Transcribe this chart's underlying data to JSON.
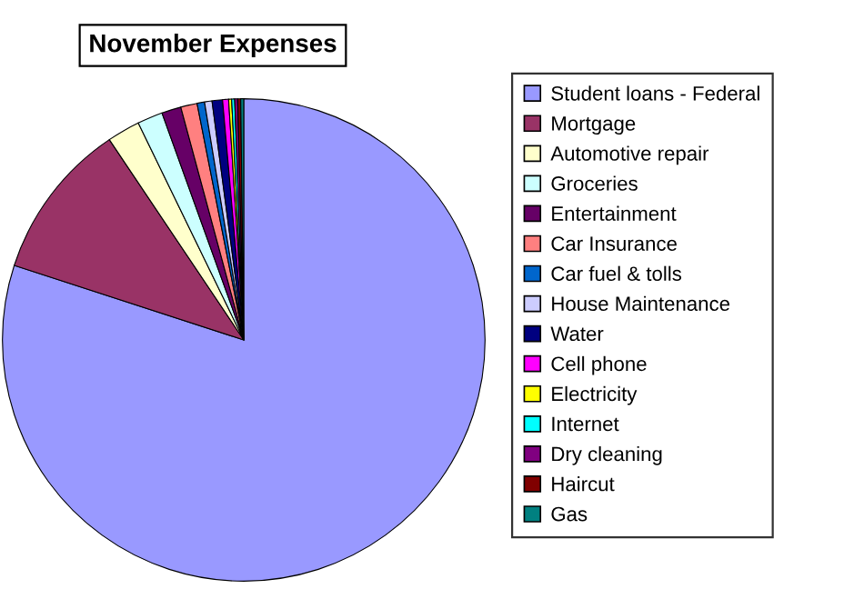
{
  "chart_data": {
    "type": "pie",
    "title": "November Expenses",
    "categories": [
      "Student loans - Federal",
      "Mortgage",
      "Automotive repair",
      "Groceries",
      "Entertainment",
      "Car Insurance",
      "Car fuel & tolls",
      "House Maintenance",
      "Water",
      "Cell phone",
      "Electricity",
      "Internet",
      "Dry cleaning",
      "Haircut",
      "Gas"
    ],
    "values": [
      80.0,
      10.6,
      2.2,
      1.7,
      1.3,
      1.1,
      0.5,
      0.5,
      0.7,
      0.4,
      0.2,
      0.2,
      0.2,
      0.2,
      0.2
    ],
    "colors": [
      "#9999ff",
      "#993366",
      "#ffffcc",
      "#ccffff",
      "#660066",
      "#ff8080",
      "#0066cc",
      "#ccccff",
      "#000080",
      "#ff00ff",
      "#ffff00",
      "#00ffff",
      "#800080",
      "#800000",
      "#008080"
    ],
    "legend": "right"
  }
}
